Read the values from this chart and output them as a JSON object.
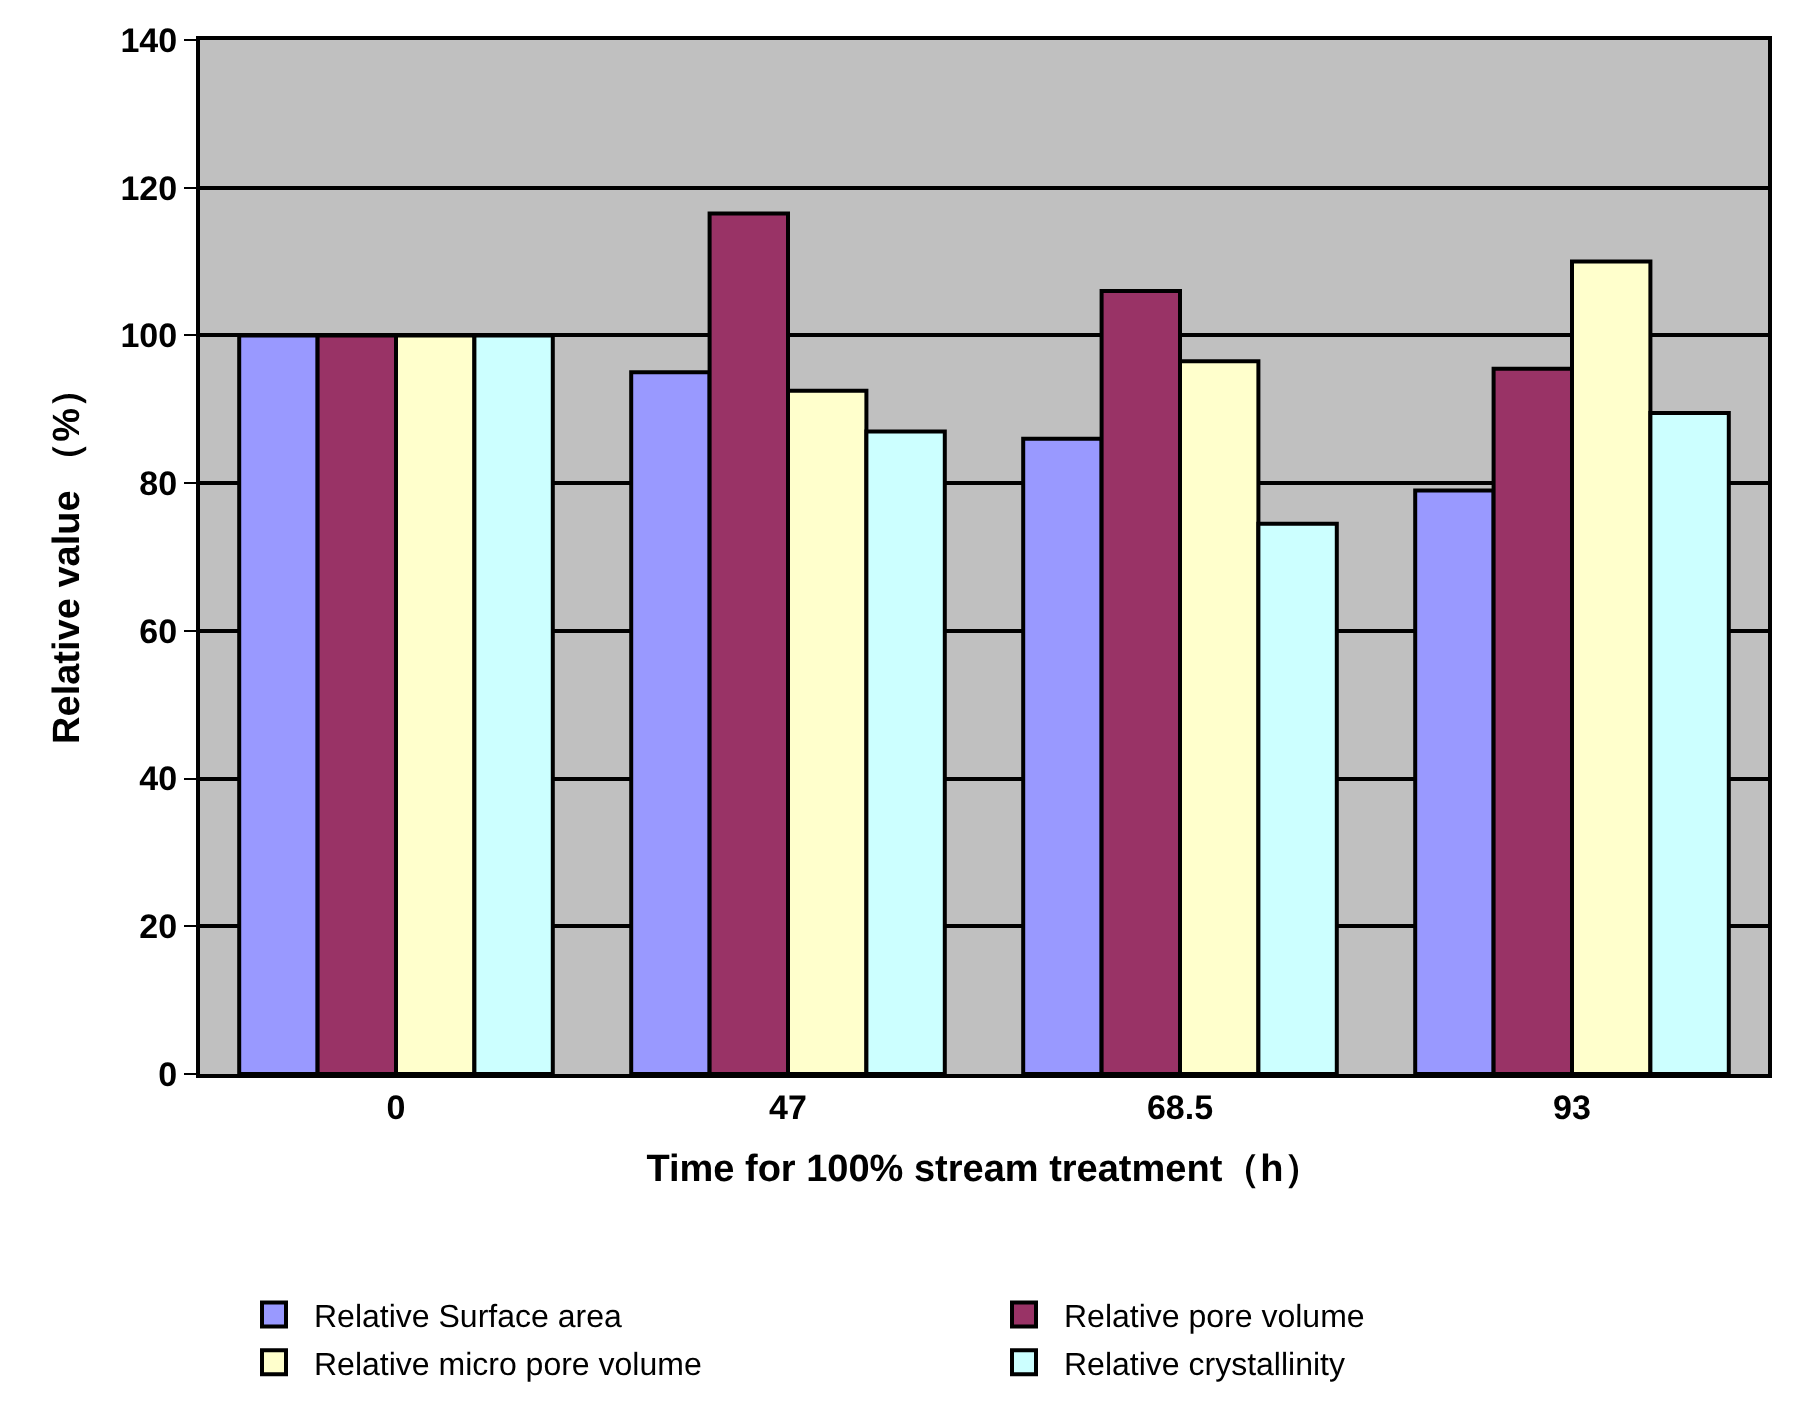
{
  "chart_data": {
    "type": "bar",
    "xlabel": "Time for 100% stream treatment（h）",
    "ylabel": "Relative value （%）",
    "categories": [
      "0",
      "47",
      "68.5",
      "93"
    ],
    "series": [
      {
        "name": "Relative Surface area",
        "color": "#9999ff",
        "values": [
          100,
          95,
          86,
          79
        ]
      },
      {
        "name": "Relative pore volume",
        "color": "#993366",
        "values": [
          100,
          116.5,
          106,
          95.5
        ]
      },
      {
        "name": "Relative micro pore volume",
        "color": "#ffffcc",
        "values": [
          100,
          92.5,
          96.5,
          110
        ]
      },
      {
        "name": "Relative crystallinity",
        "color": "#ccffff",
        "values": [
          100,
          87,
          74.5,
          89.5
        ]
      }
    ],
    "ylim": [
      0,
      140
    ],
    "yticks": [
      0,
      20,
      40,
      60,
      80,
      100,
      120,
      140
    ],
    "grid": "y",
    "legend": "bottom"
  }
}
